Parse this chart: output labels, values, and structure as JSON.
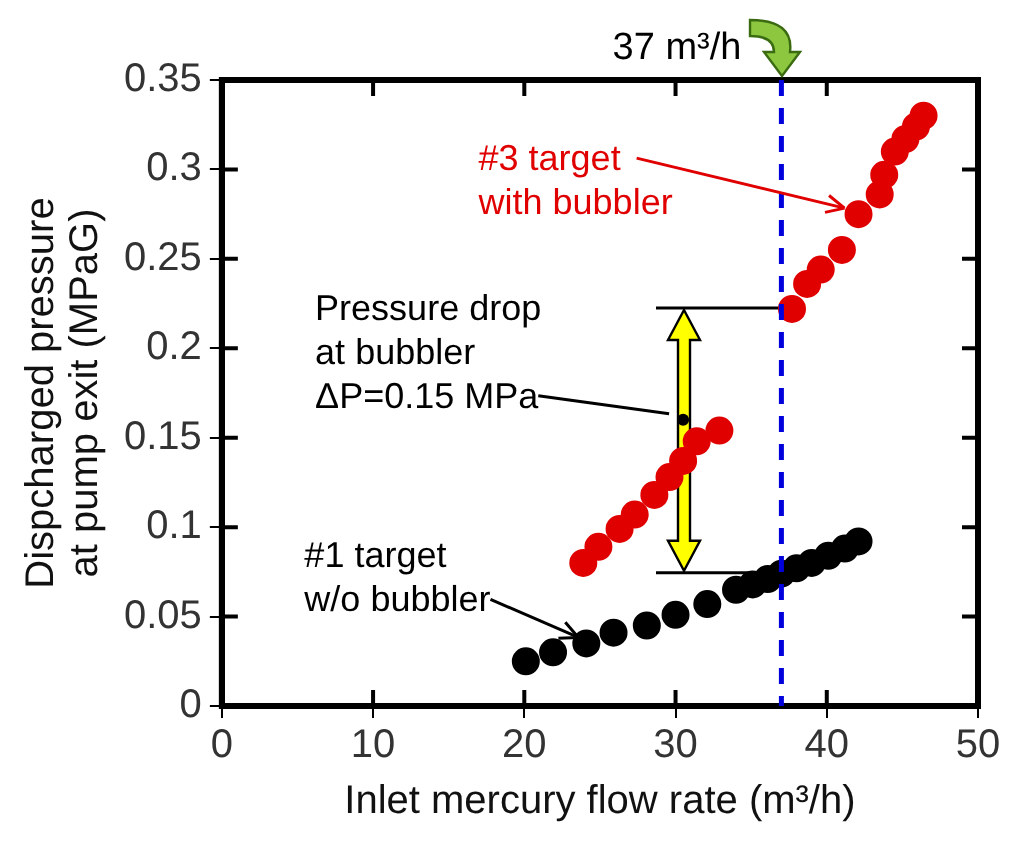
{
  "chart_data": {
    "type": "scatter",
    "xlabel": "Inlet mercury flow rate (m³/h)",
    "ylabel": "Dispcharged pressure\nat pump exit (MPaG)",
    "xlim": [
      0,
      50
    ],
    "xticks": [
      0,
      10,
      20,
      30,
      40,
      50
    ],
    "ylim": [
      0,
      0.35
    ],
    "yticks": [
      0,
      0.05,
      0.1,
      0.15,
      0.2,
      0.25,
      0.3,
      0.35
    ],
    "grid": false,
    "legend": false,
    "marker": "circle",
    "series": [
      {
        "color": "#000000",
        "x": [
          20.1,
          21.9,
          24.1,
          25.9,
          28.1,
          30.0,
          32.1,
          34.0,
          35.1,
          36.1,
          37.0,
          38.0,
          39.0,
          40.1,
          41.2,
          42.1
        ],
        "values": [
          0.025,
          0.03,
          0.035,
          0.041,
          0.045,
          0.051,
          0.057,
          0.065,
          0.068,
          0.071,
          0.074,
          0.077,
          0.08,
          0.084,
          0.088,
          0.092
        ]
      },
      {
        "color": "#e00000",
        "x": [
          23.9,
          24.9,
          26.3,
          27.3,
          28.6,
          29.6,
          30.5,
          31.4,
          32.9,
          37.7,
          38.7,
          39.6,
          41.0,
          42.1,
          43.5,
          43.8,
          44.5,
          45.2,
          45.9,
          46.4
        ],
        "values": [
          0.08,
          0.089,
          0.099,
          0.107,
          0.118,
          0.128,
          0.137,
          0.148,
          0.154,
          0.222,
          0.236,
          0.244,
          0.255,
          0.275,
          0.286,
          0.297,
          0.31,
          0.317,
          0.324,
          0.33
        ]
      }
    ],
    "ref_lines": [
      {
        "axis": "x",
        "value": 37,
        "label": "37 m³/h",
        "color": "#0000dd",
        "line_style": "dashed"
      }
    ],
    "annotations": [
      {
        "text": "#3 target\nwith bubbler",
        "x": 42.1,
        "y": 0.275
      },
      {
        "text": "Pressure drop\nat bubbler\nΔP=0.15 MPa",
        "x": 30.5,
        "y": 0.16
      },
      {
        "text": "#1 target\nw/o bubbler",
        "x": 24.5,
        "y": 0.035
      }
    ]
  }
}
